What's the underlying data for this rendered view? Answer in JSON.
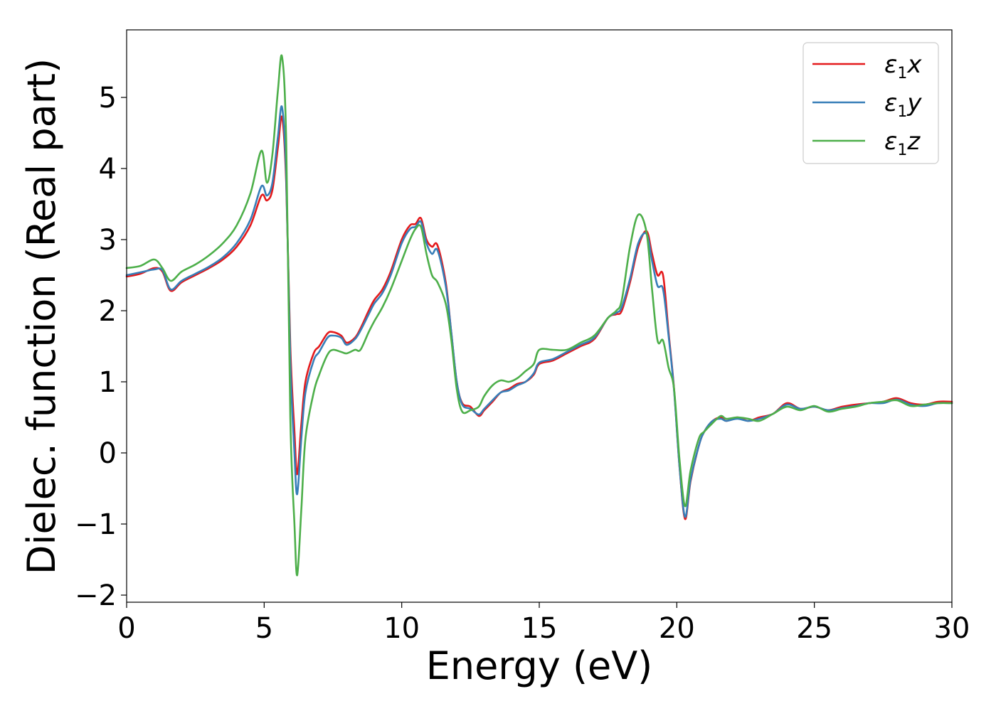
{
  "chart_data": {
    "type": "line",
    "title": "",
    "xlabel": "Energy (eV)",
    "ylabel": "Dielec. function (Real part)",
    "xlim": [
      0,
      30
    ],
    "ylim": [
      -2.1,
      5.95
    ],
    "xticks": [
      0,
      5,
      10,
      15,
      20,
      25,
      30
    ],
    "xtick_labels": [
      "0",
      "5",
      "10",
      "15",
      "20",
      "25",
      "30"
    ],
    "yticks": [
      -2,
      -1,
      0,
      1,
      2,
      3,
      4,
      5
    ],
    "ytick_labels": [
      "−2",
      "−1",
      "0",
      "1",
      "2",
      "3",
      "4",
      "5"
    ],
    "grid": false,
    "legend_position": "top-right",
    "series": [
      {
        "name": "ε1x",
        "legend_main": "ε",
        "legend_sub": "1",
        "legend_var": "x",
        "color": "#e41a1c",
        "x": [
          0,
          0.5,
          1.0,
          1.3,
          1.6,
          2.0,
          2.5,
          3.0,
          3.5,
          4.0,
          4.5,
          4.9,
          5.1,
          5.3,
          5.5,
          5.65,
          5.8,
          5.95,
          6.1,
          6.2,
          6.35,
          6.5,
          6.8,
          7.0,
          7.3,
          7.5,
          7.8,
          8.0,
          8.3,
          8.5,
          8.8,
          9.0,
          9.3,
          9.6,
          10.0,
          10.3,
          10.5,
          10.7,
          10.9,
          11.1,
          11.3,
          11.6,
          11.8,
          12.0,
          12.2,
          12.5,
          12.8,
          13.0,
          13.3,
          13.6,
          13.9,
          14.2,
          14.5,
          14.8,
          15.0,
          15.5,
          16.0,
          16.5,
          17.0,
          17.5,
          17.8,
          18.0,
          18.3,
          18.6,
          18.9,
          19.1,
          19.3,
          19.5,
          19.7,
          19.9,
          20.1,
          20.3,
          20.5,
          20.8,
          21.0,
          21.3,
          21.6,
          21.8,
          22.2,
          22.6,
          23.0,
          23.5,
          24.0,
          24.5,
          25.0,
          25.5,
          26.0,
          26.5,
          27.0,
          27.5,
          28.0,
          28.5,
          29.0,
          29.5,
          30.0
        ],
        "y": [
          2.48,
          2.52,
          2.6,
          2.55,
          2.28,
          2.4,
          2.5,
          2.6,
          2.72,
          2.9,
          3.2,
          3.62,
          3.55,
          3.7,
          4.3,
          4.72,
          3.8,
          1.5,
          0.3,
          -0.3,
          0.4,
          1.0,
          1.4,
          1.5,
          1.68,
          1.7,
          1.65,
          1.55,
          1.62,
          1.75,
          2.0,
          2.15,
          2.3,
          2.55,
          3.0,
          3.2,
          3.22,
          3.3,
          3.0,
          2.9,
          2.92,
          2.4,
          1.7,
          1.0,
          0.7,
          0.65,
          0.52,
          0.6,
          0.72,
          0.85,
          0.9,
          0.97,
          1.0,
          1.1,
          1.25,
          1.3,
          1.4,
          1.5,
          1.6,
          1.9,
          1.95,
          2.0,
          2.4,
          2.9,
          3.12,
          2.8,
          2.5,
          2.5,
          1.7,
          0.9,
          -0.2,
          -0.93,
          -0.4,
          0.1,
          0.3,
          0.45,
          0.5,
          0.45,
          0.5,
          0.45,
          0.5,
          0.55,
          0.7,
          0.62,
          0.65,
          0.6,
          0.65,
          0.68,
          0.7,
          0.72,
          0.77,
          0.7,
          0.68,
          0.72,
          0.72
        ]
      },
      {
        "name": "ε1y",
        "legend_main": "ε",
        "legend_sub": "1",
        "legend_var": "y",
        "color": "#377eb8",
        "x": [
          0,
          0.5,
          1.0,
          1.3,
          1.6,
          2.0,
          2.5,
          3.0,
          3.5,
          4.0,
          4.5,
          4.9,
          5.1,
          5.3,
          5.5,
          5.65,
          5.8,
          5.95,
          6.1,
          6.2,
          6.35,
          6.5,
          6.8,
          7.0,
          7.3,
          7.5,
          7.8,
          8.0,
          8.3,
          8.5,
          8.8,
          9.0,
          9.3,
          9.6,
          10.0,
          10.3,
          10.5,
          10.7,
          10.9,
          11.1,
          11.3,
          11.6,
          11.8,
          12.0,
          12.2,
          12.5,
          12.8,
          13.0,
          13.3,
          13.6,
          13.9,
          14.2,
          14.5,
          14.8,
          15.0,
          15.5,
          16.0,
          16.5,
          17.0,
          17.5,
          17.8,
          18.0,
          18.3,
          18.6,
          18.9,
          19.1,
          19.3,
          19.5,
          19.7,
          19.9,
          20.1,
          20.3,
          20.5,
          20.8,
          21.0,
          21.3,
          21.6,
          21.8,
          22.2,
          22.6,
          23.0,
          23.5,
          24.0,
          24.5,
          25.0,
          25.5,
          26.0,
          26.5,
          27.0,
          27.5,
          28.0,
          28.5,
          29.0,
          29.5,
          30.0
        ],
        "y": [
          2.5,
          2.54,
          2.58,
          2.57,
          2.3,
          2.42,
          2.52,
          2.62,
          2.75,
          2.95,
          3.28,
          3.75,
          3.62,
          3.8,
          4.45,
          4.86,
          3.9,
          1.3,
          0.0,
          -0.58,
          0.2,
          0.85,
          1.3,
          1.42,
          1.62,
          1.65,
          1.62,
          1.52,
          1.6,
          1.72,
          1.95,
          2.1,
          2.25,
          2.5,
          2.95,
          3.15,
          3.18,
          3.25,
          2.95,
          2.8,
          2.85,
          2.35,
          1.7,
          1.0,
          0.68,
          0.62,
          0.54,
          0.62,
          0.74,
          0.85,
          0.88,
          0.95,
          1.0,
          1.12,
          1.27,
          1.32,
          1.42,
          1.52,
          1.62,
          1.9,
          1.97,
          2.05,
          2.45,
          2.95,
          3.08,
          2.7,
          2.35,
          2.3,
          1.65,
          0.88,
          -0.2,
          -0.9,
          -0.38,
          0.1,
          0.3,
          0.45,
          0.48,
          0.45,
          0.48,
          0.45,
          0.48,
          0.55,
          0.68,
          0.62,
          0.65,
          0.6,
          0.63,
          0.66,
          0.7,
          0.7,
          0.75,
          0.68,
          0.66,
          0.7,
          0.7
        ]
      },
      {
        "name": "ε1z",
        "legend_main": "ε",
        "legend_sub": "1",
        "legend_var": "z",
        "color": "#4daf4a",
        "x": [
          0,
          0.5,
          1.0,
          1.3,
          1.6,
          2.0,
          2.5,
          3.0,
          3.5,
          4.0,
          4.5,
          4.9,
          5.1,
          5.3,
          5.5,
          5.65,
          5.8,
          5.95,
          6.1,
          6.2,
          6.35,
          6.5,
          6.8,
          7.0,
          7.3,
          7.5,
          7.8,
          8.0,
          8.3,
          8.5,
          8.8,
          9.0,
          9.3,
          9.6,
          10.0,
          10.3,
          10.5,
          10.7,
          10.9,
          11.1,
          11.3,
          11.6,
          11.8,
          12.0,
          12.2,
          12.5,
          12.8,
          13.0,
          13.3,
          13.6,
          13.9,
          14.2,
          14.5,
          14.8,
          15.0,
          15.5,
          16.0,
          16.5,
          17.0,
          17.5,
          17.8,
          18.0,
          18.3,
          18.6,
          18.9,
          19.1,
          19.3,
          19.5,
          19.7,
          19.9,
          20.1,
          20.3,
          20.5,
          20.8,
          21.0,
          21.3,
          21.6,
          21.8,
          22.2,
          22.6,
          23.0,
          23.5,
          24.0,
          24.5,
          25.0,
          25.5,
          26.0,
          26.5,
          27.0,
          27.5,
          28.0,
          28.5,
          29.0,
          29.5,
          30.0
        ],
        "y": [
          2.6,
          2.63,
          2.72,
          2.6,
          2.42,
          2.55,
          2.65,
          2.78,
          2.95,
          3.2,
          3.65,
          4.25,
          3.8,
          4.2,
          5.1,
          5.57,
          4.4,
          0.5,
          -1.0,
          -1.72,
          -0.8,
          0.2,
          0.85,
          1.1,
          1.38,
          1.45,
          1.42,
          1.4,
          1.45,
          1.45,
          1.7,
          1.85,
          2.05,
          2.3,
          2.7,
          3.0,
          3.15,
          3.18,
          2.8,
          2.5,
          2.4,
          2.1,
          1.6,
          0.9,
          0.58,
          0.6,
          0.65,
          0.8,
          0.95,
          1.02,
          1.0,
          1.05,
          1.15,
          1.25,
          1.45,
          1.45,
          1.45,
          1.55,
          1.65,
          1.9,
          2.0,
          2.15,
          2.9,
          3.35,
          3.1,
          2.3,
          1.58,
          1.58,
          1.2,
          0.9,
          -0.1,
          -0.75,
          -0.25,
          0.2,
          0.3,
          0.42,
          0.52,
          0.48,
          0.5,
          0.48,
          0.45,
          0.55,
          0.65,
          0.6,
          0.66,
          0.58,
          0.62,
          0.65,
          0.7,
          0.72,
          0.74,
          0.66,
          0.68,
          0.7,
          0.7
        ]
      }
    ]
  }
}
